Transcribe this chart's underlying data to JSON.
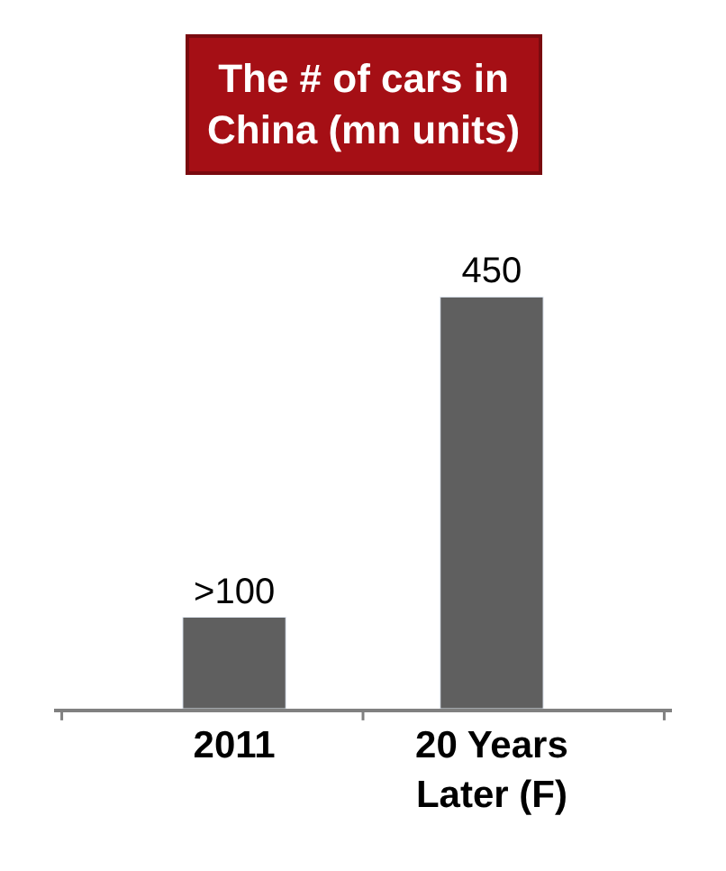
{
  "chart_data": {
    "type": "bar",
    "title": "The # of cars in China (mn units)",
    "categories": [
      "2011",
      "20 Years Later (F)"
    ],
    "values": [
      100,
      450
    ],
    "value_labels": [
      ">100",
      "450"
    ],
    "color": "#5f5f5f",
    "legend": false,
    "tick_labels": "x"
  }
}
